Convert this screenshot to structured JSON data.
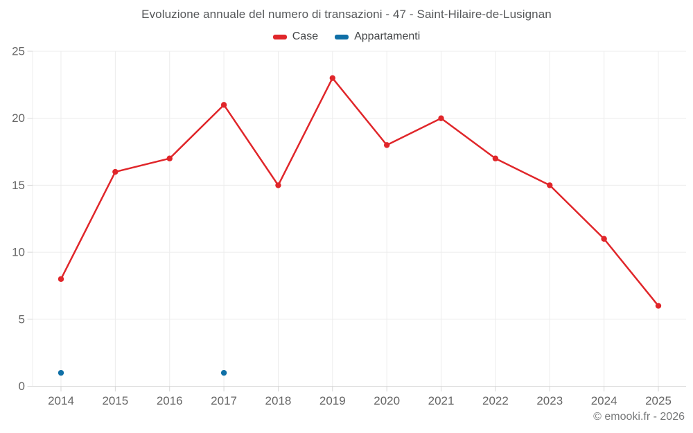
{
  "chart_data": {
    "type": "line",
    "title": "Evoluzione annuale del numero di transazioni - 47 - Saint-Hilaire-de-Lusignan",
    "categories": [
      "2014",
      "2015",
      "2016",
      "2017",
      "2018",
      "2019",
      "2020",
      "2021",
      "2022",
      "2023",
      "2024",
      "2025"
    ],
    "series": [
      {
        "name": "Case",
        "color": "#e0262a",
        "values": [
          8,
          16,
          17,
          21,
          15,
          23,
          18,
          20,
          17,
          15,
          11,
          6
        ]
      },
      {
        "name": "Appartamenti",
        "color": "#0f6fa6",
        "values": [
          1,
          null,
          null,
          1,
          null,
          null,
          null,
          null,
          null,
          null,
          null,
          null
        ]
      }
    ],
    "xlabel": "",
    "ylabel": "",
    "ylim": [
      0,
      25
    ],
    "yticks": [
      0,
      5,
      10,
      15,
      20,
      25
    ],
    "grid": true,
    "legend_position": "top"
  },
  "footer": {
    "watermark": "© emooki.fr - 2026"
  }
}
